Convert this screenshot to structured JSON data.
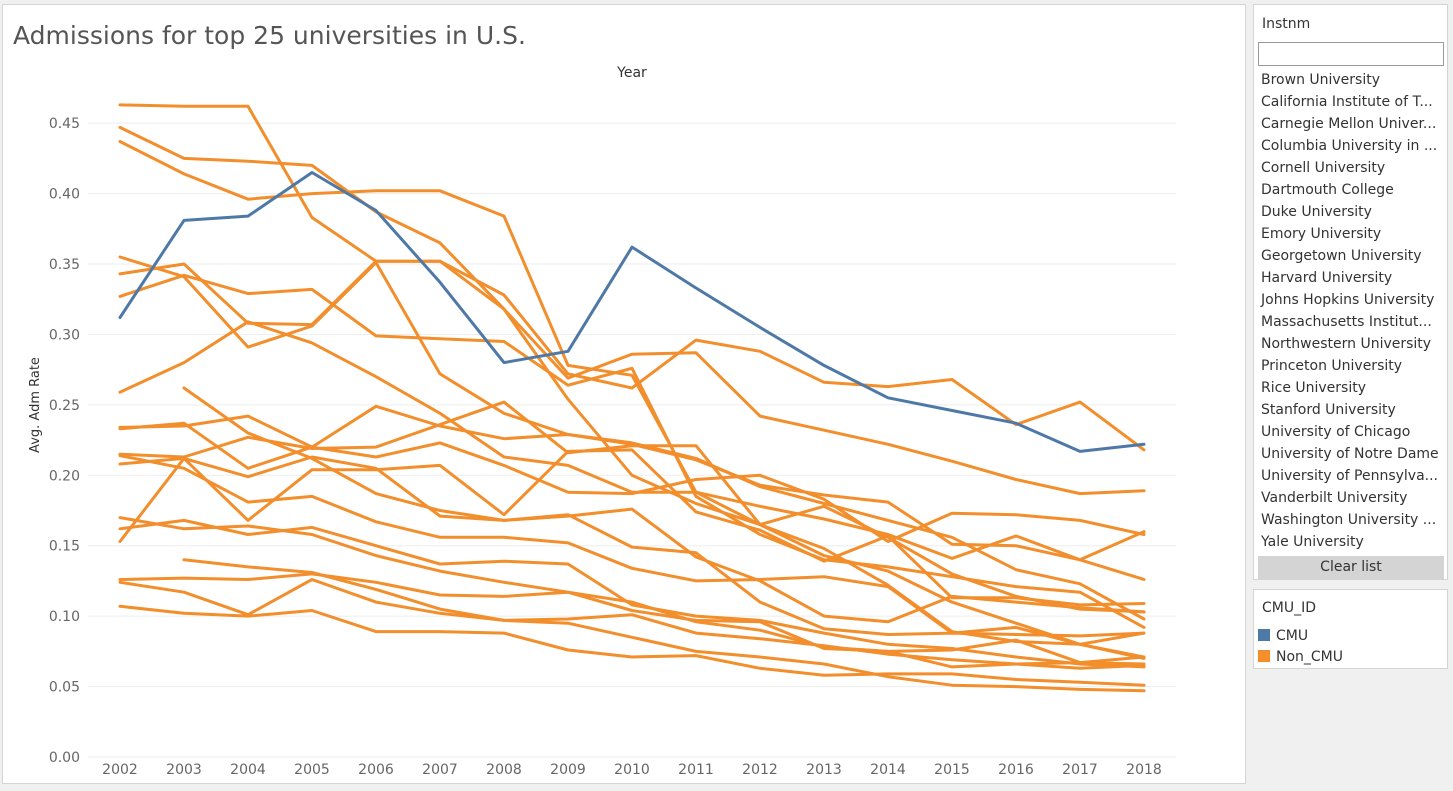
{
  "colors": {
    "cmu": "#4e79a7",
    "non_cmu": "#f28e2b",
    "grid": "#eeeeee",
    "tick": "#666666"
  },
  "chart_data": {
    "type": "line",
    "title": "Admissions for top 25 universities in U.S.",
    "x_header": "Year",
    "ylabel": "Avg. Adm Rate",
    "x": [
      2002,
      2003,
      2004,
      2005,
      2006,
      2007,
      2008,
      2009,
      2010,
      2011,
      2012,
      2013,
      2014,
      2015,
      2016,
      2017,
      2018
    ],
    "ylim": [
      0,
      0.47
    ],
    "y_ticks": [
      "0.00",
      "0.05",
      "0.10",
      "0.15",
      "0.20",
      "0.25",
      "0.30",
      "0.35",
      "0.40",
      "0.45"
    ],
    "y_tick_values": [
      0,
      0.05,
      0.1,
      0.15,
      0.2,
      0.25,
      0.3,
      0.35,
      0.4,
      0.45
    ],
    "grid": true,
    "series": [
      {
        "group": "CMU",
        "values": [
          0.312,
          0.381,
          0.384,
          0.415,
          0.388,
          0.337,
          0.28,
          0.288,
          0.362,
          0.333,
          0.305,
          0.278,
          0.255,
          0.246,
          0.237,
          0.217,
          0.222
        ]
      },
      {
        "group": "Non_CMU",
        "values": [
          0.463,
          0.462,
          0.462,
          0.383,
          0.352,
          0.352,
          0.328,
          0.272,
          0.262,
          0.296,
          0.288,
          0.266,
          0.263,
          0.268,
          0.236,
          0.252,
          0.218
        ]
      },
      {
        "group": "Non_CMU",
        "values": [
          0.447,
          0.425,
          0.423,
          0.42,
          0.387,
          0.365,
          0.318,
          0.254,
          0.2,
          0.18,
          0.165,
          0.143,
          0.132,
          0.11,
          0.095,
          0.08,
          0.07
        ]
      },
      {
        "group": "Non_CMU",
        "values": [
          0.437,
          0.414,
          0.396,
          0.4,
          0.402,
          0.402,
          0.384,
          0.278,
          0.271,
          0.188,
          0.165,
          0.148,
          0.122,
          0.089,
          0.082,
          0.08,
          0.088
        ]
      },
      {
        "group": "Non_CMU",
        "values": [
          0.355,
          0.341,
          0.291,
          0.306,
          0.351,
          0.272,
          0.244,
          0.229,
          0.222,
          0.211,
          0.193,
          0.186,
          0.181,
          0.151,
          0.15,
          0.14,
          0.126
        ]
      },
      {
        "group": "Non_CMU",
        "values": [
          0.343,
          0.35,
          0.308,
          0.307,
          0.352,
          0.352,
          0.318,
          0.269,
          0.286,
          0.287,
          0.242,
          0.232,
          0.222,
          0.21,
          0.197,
          0.187,
          0.189
        ]
      },
      {
        "group": "Non_CMU",
        "values": [
          0.327,
          0.342,
          0.329,
          0.332,
          0.299,
          0.297,
          0.295,
          0.264,
          0.276,
          0.185,
          0.158,
          0.14,
          0.135,
          0.128,
          0.121,
          0.117,
          0.092
        ]
      },
      {
        "group": "Non_CMU",
        "values": [
          0.259,
          0.28,
          0.309,
          0.294,
          0.27,
          0.244,
          0.213,
          0.207,
          0.188,
          0.188,
          0.178,
          0.169,
          0.158,
          0.141,
          0.157,
          0.14,
          0.16
        ]
      },
      {
        "group": "Non_CMU",
        "values": [
          0.234,
          0.235,
          0.242,
          0.22,
          0.249,
          0.235,
          0.226,
          0.229,
          0.223,
          0.212,
          0.192,
          0.18,
          0.168,
          0.156,
          0.133,
          0.123,
          0.098
        ]
      },
      {
        "group": "Non_CMU",
        "values": [
          0.233,
          0.237,
          0.205,
          0.22,
          0.213,
          0.223,
          0.207,
          0.188,
          0.187,
          0.197,
          0.2,
          0.183,
          0.153,
          0.173,
          0.172,
          0.168,
          0.158
        ]
      },
      {
        "group": "Non_CMU",
        "values": [
          0.215,
          0.213,
          0.227,
          0.219,
          0.22,
          0.236,
          0.252,
          0.216,
          0.221,
          0.221,
          0.165,
          0.178,
          0.156,
          0.13,
          0.114,
          0.105,
          0.103
        ]
      },
      {
        "group": "Non_CMU",
        "values": [
          0.214,
          0.205,
          0.181,
          0.185,
          0.167,
          0.156,
          0.156,
          0.152,
          0.134,
          0.125,
          0.126,
          0.128,
          0.121,
          0.088,
          0.092,
          0.08,
          0.071
        ]
      },
      {
        "group": "Non_CMU",
        "values": [
          0.208,
          0.212,
          0.168,
          0.204,
          0.204,
          0.207,
          0.172,
          0.217,
          0.218,
          0.174,
          0.161,
          0.139,
          0.157,
          0.113,
          0.113,
          0.108,
          0.109
        ]
      },
      {
        "group": "Non_CMU",
        "values": [
          null,
          0.262,
          0.23,
          0.212,
          0.187,
          0.175,
          0.168,
          0.171,
          0.176,
          0.142,
          0.125,
          0.1,
          0.096,
          0.114,
          0.11,
          0.106,
          0.103
        ]
      },
      {
        "group": "Non_CMU",
        "values": [
          0.17,
          0.162,
          0.164,
          0.158,
          0.143,
          0.132,
          0.124,
          0.117,
          0.104,
          0.097,
          0.096,
          0.077,
          0.075,
          0.076,
          0.083,
          0.067,
          0.071
        ]
      },
      {
        "group": "Non_CMU",
        "values": [
          0.162,
          0.168,
          0.158,
          0.163,
          0.15,
          0.137,
          0.139,
          0.137,
          0.108,
          0.1,
          0.097,
          0.088,
          0.08,
          0.077,
          0.071,
          0.066,
          0.064
        ]
      },
      {
        "group": "Non_CMU",
        "values": [
          0.153,
          0.212,
          0.199,
          0.213,
          0.205,
          0.171,
          0.168,
          0.172,
          0.149,
          0.145,
          0.11,
          0.091,
          0.087,
          0.088,
          0.087,
          0.086,
          0.088
        ]
      },
      {
        "group": "Non_CMU",
        "values": [
          0.126,
          0.127,
          0.126,
          0.13,
          0.124,
          0.115,
          0.114,
          0.117,
          0.11,
          0.096,
          0.09,
          0.078,
          0.075,
          0.064,
          0.066,
          0.063,
          0.065
        ]
      },
      {
        "group": "Non_CMU",
        "values": [
          0.124,
          0.117,
          0.101,
          0.126,
          0.11,
          0.102,
          0.097,
          0.098,
          0.101,
          0.088,
          0.084,
          0.079,
          0.073,
          0.069,
          0.066,
          0.067,
          0.066
        ]
      },
      {
        "group": "Non_CMU",
        "values": [
          null,
          0.14,
          0.135,
          0.131,
          0.119,
          0.105,
          0.097,
          0.095,
          0.085,
          0.075,
          0.071,
          0.066,
          0.057,
          0.051,
          0.05,
          0.048,
          0.047
        ]
      },
      {
        "group": "Non_CMU",
        "values": [
          0.107,
          0.102,
          0.1,
          0.104,
          0.089,
          0.089,
          0.088,
          0.076,
          0.071,
          0.072,
          0.063,
          0.058,
          0.059,
          0.059,
          0.055,
          0.053,
          0.051
        ]
      }
    ]
  },
  "filter": {
    "title": "Instnm",
    "search_value": "",
    "items": [
      "Brown University",
      "California Institute of T...",
      "Carnegie Mellon Univer...",
      "Columbia University in ...",
      "Cornell University",
      "Dartmouth College",
      "Duke University",
      "Emory University",
      "Georgetown University",
      "Harvard University",
      "Johns Hopkins University",
      "Massachusetts Institut...",
      "Northwestern University",
      "Princeton University",
      "Rice University",
      "Stanford University",
      "University of Chicago",
      "University of Notre Dame",
      "University of Pennsylva...",
      "Vanderbilt University",
      "Washington University ...",
      "Yale University"
    ],
    "clear_label": "Clear list"
  },
  "legend": {
    "title": "CMU_ID",
    "items": [
      {
        "label": "CMU",
        "color": "#4e79a7"
      },
      {
        "label": "Non_CMU",
        "color": "#f28e2b"
      }
    ]
  }
}
